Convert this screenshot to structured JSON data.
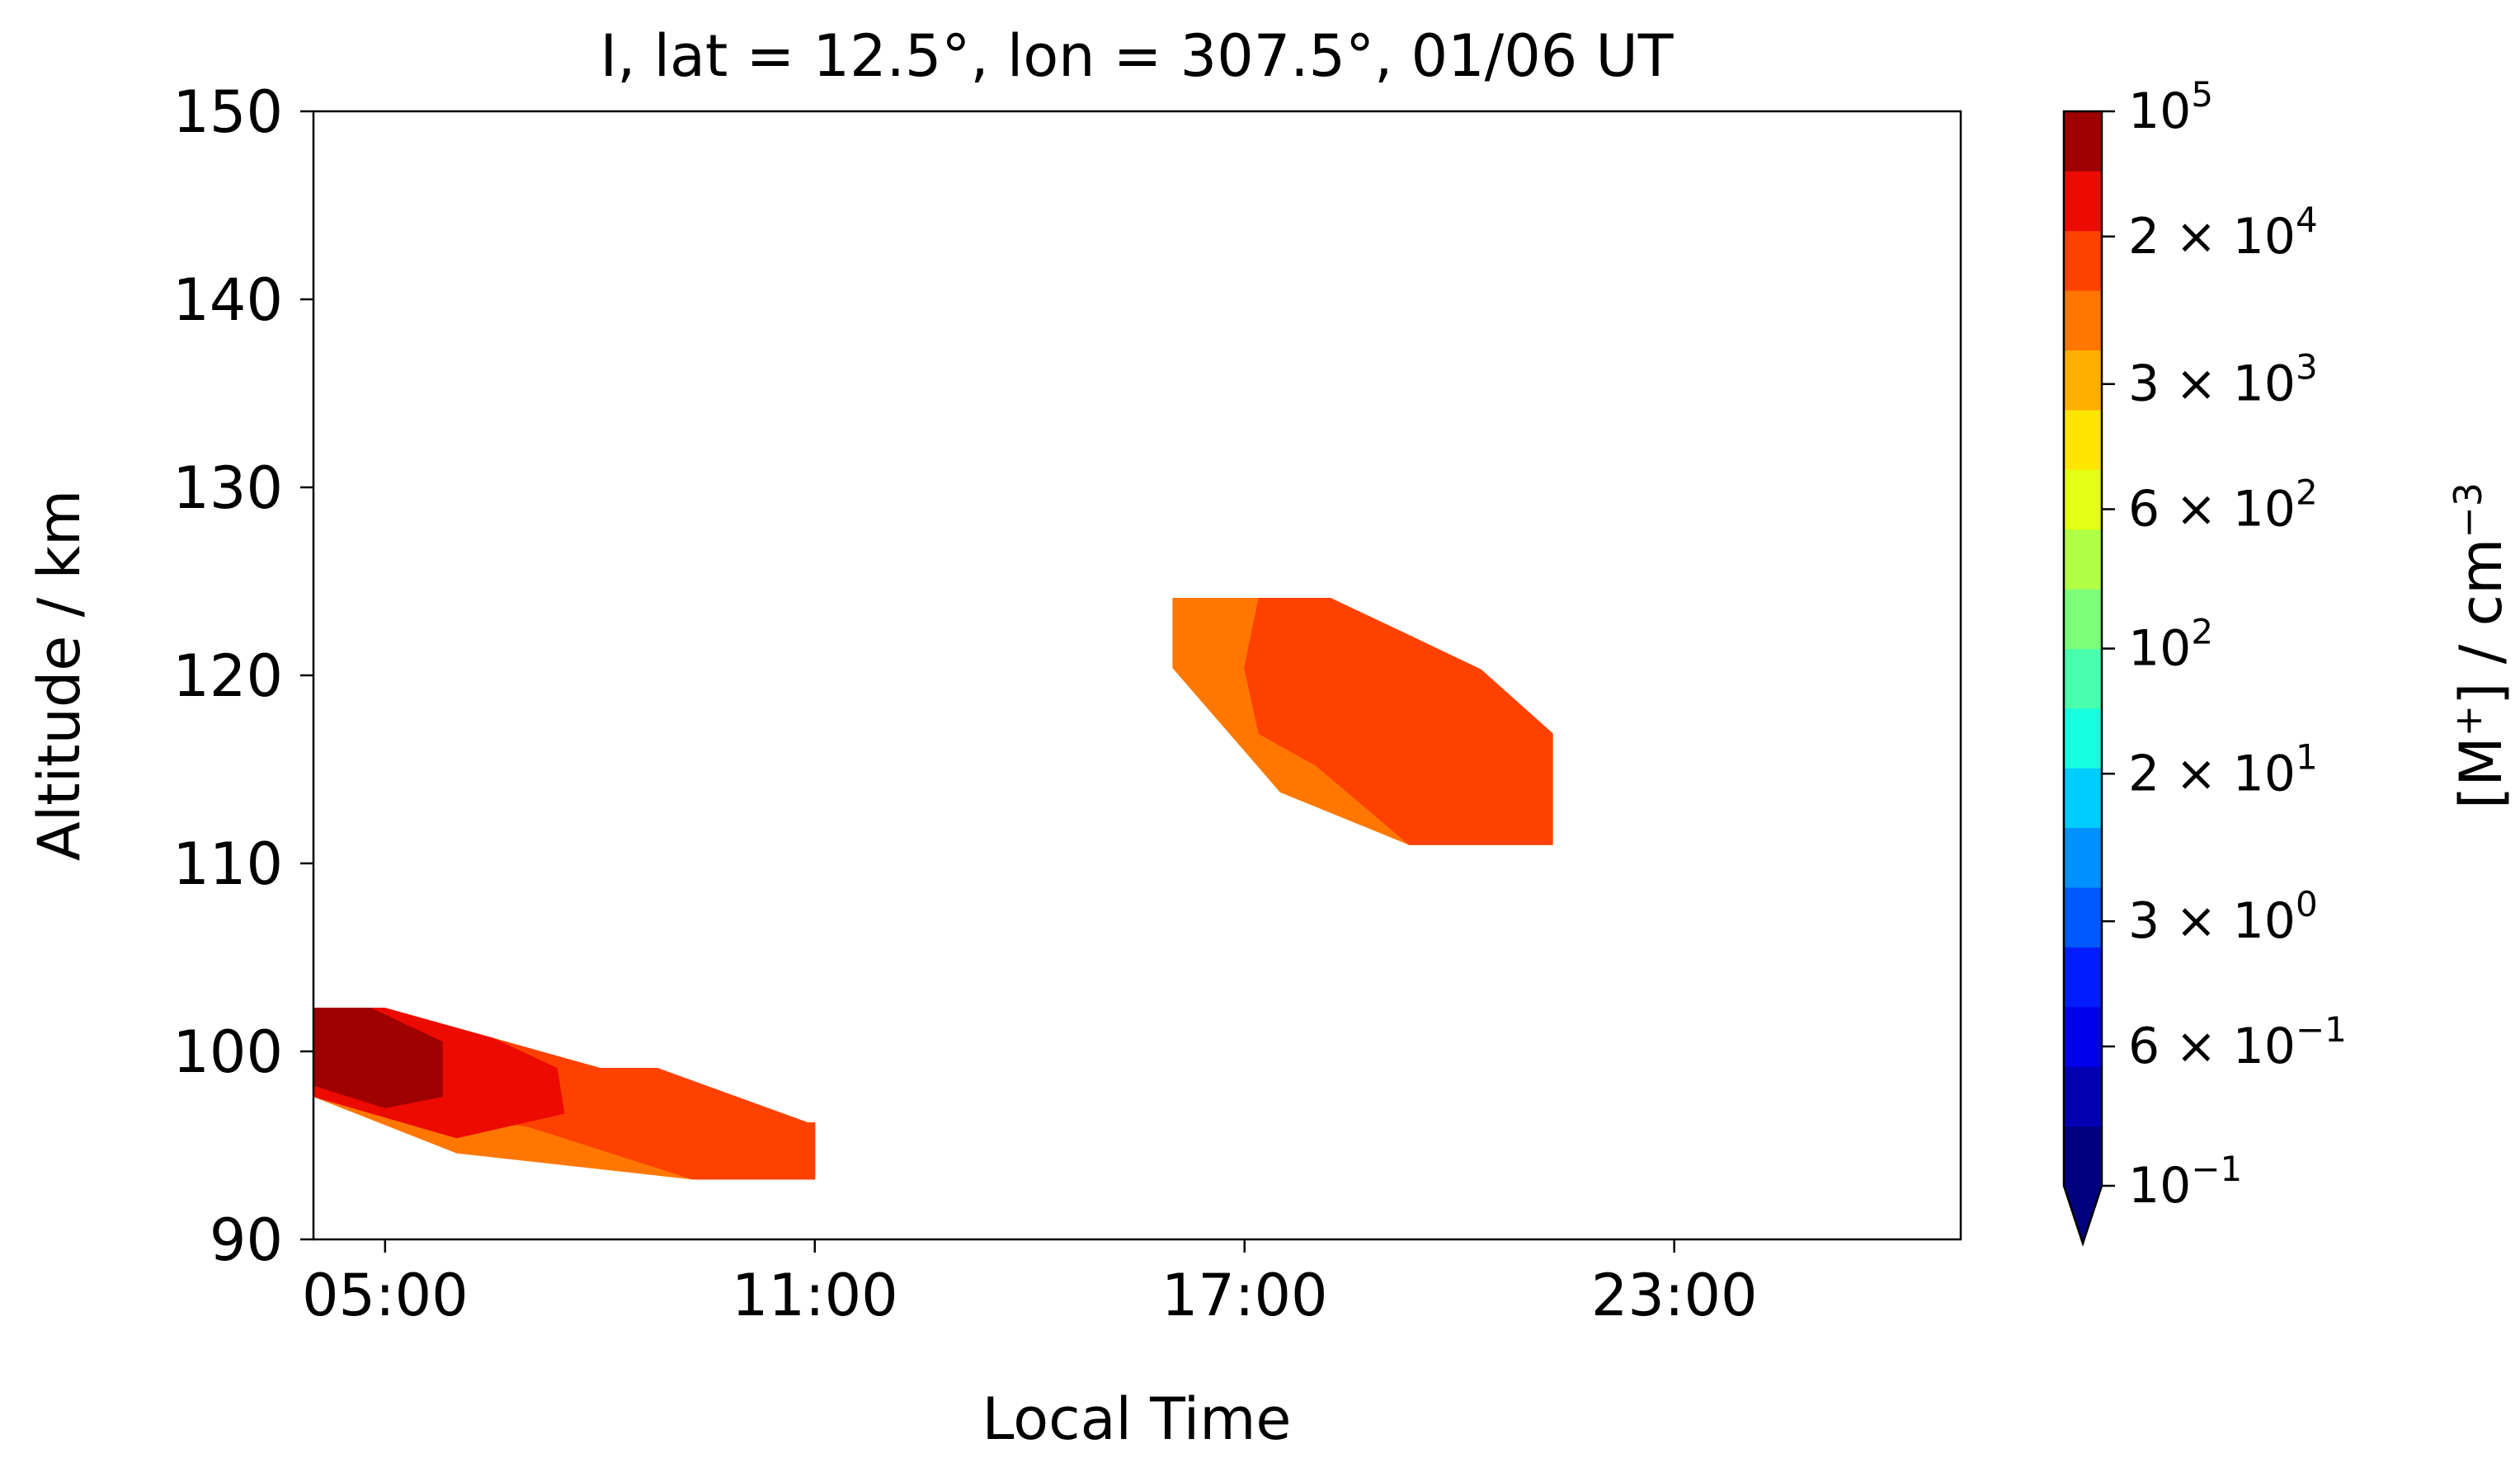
{
  "chart_data": {
    "type": "contour",
    "title": "I, lat = 12.5°, lon = 307.5°, 01/06 UT",
    "xlabel": "Local Time",
    "ylabel": "Altitude / km",
    "xlim": [
      4.0,
      27.0
    ],
    "ylim": [
      90,
      150
    ],
    "x_ticks": [
      {
        "value": 5,
        "label": "05:00"
      },
      {
        "value": 11,
        "label": "11:00"
      },
      {
        "value": 17,
        "label": "17:00"
      },
      {
        "value": 23,
        "label": "23:00"
      }
    ],
    "y_ticks": [
      {
        "value": 90,
        "label": "90"
      },
      {
        "value": 100,
        "label": "100"
      },
      {
        "value": 110,
        "label": "110"
      },
      {
        "value": 120,
        "label": "120"
      },
      {
        "value": 130,
        "label": "130"
      },
      {
        "value": 140,
        "label": "140"
      },
      {
        "value": 150,
        "label": "150"
      }
    ],
    "colorbar": {
      "label_main": "[M",
      "label_sup1": "+",
      "label_mid": "] / cm",
      "label_sup2": "−3",
      "scale": "log",
      "range": [
        0.1,
        100000
      ],
      "extend": "min",
      "colors": [
        "#00007f",
        "#0000b2",
        "#0000ed",
        "#001cff",
        "#0058ff",
        "#0090ff",
        "#00ccff",
        "#16ffe1",
        "#49ffad",
        "#7dff7a",
        "#b1ff46",
        "#e4ff13",
        "#ffe500",
        "#ffae00",
        "#ff7700",
        "#ff4100",
        "#ed0a00",
        "#9f0000"
      ],
      "ticks": [
        {
          "value": 0.1,
          "mant": "10",
          "exp": "−1"
        },
        {
          "value": 0.6,
          "mant": "6 × 10",
          "exp": "−1"
        },
        {
          "value": 3,
          "mant": "3 × 10",
          "exp": "0"
        },
        {
          "value": 20,
          "mant": "2 × 10",
          "exp": "1"
        },
        {
          "value": 100,
          "mant": "10",
          "exp": "2"
        },
        {
          "value": 600,
          "mant": "6 × 10",
          "exp": "2"
        },
        {
          "value": 3000,
          "mant": "3 × 10",
          "exp": "3"
        },
        {
          "value": 20000,
          "mant": "2 × 10",
          "exp": "4"
        },
        {
          "value": 100000,
          "mant": "10",
          "exp": "5"
        }
      ]
    },
    "regions": [
      {
        "color": "#ff7700",
        "points": [
          [
            4.0,
            102.3
          ],
          [
            5.0,
            102.3
          ],
          [
            8.0,
            99.1
          ],
          [
            8.8,
            99.1
          ],
          [
            10.9,
            96.2
          ],
          [
            11.0,
            96.2
          ],
          [
            11.0,
            93.2
          ],
          [
            9.3,
            93.2
          ],
          [
            6.0,
            94.6
          ],
          [
            4.0,
            97.6
          ]
        ]
      },
      {
        "color": "#ff4100",
        "points": [
          [
            4.0,
            102.3
          ],
          [
            5.0,
            102.3
          ],
          [
            8.0,
            99.1
          ],
          [
            8.8,
            99.1
          ],
          [
            10.9,
            96.2
          ],
          [
            11.0,
            96.2
          ],
          [
            11.0,
            93.2
          ],
          [
            9.3,
            93.2
          ],
          [
            7.0,
            96.0
          ],
          [
            4.0,
            97.6
          ]
        ]
      },
      {
        "color": "#ed0a00",
        "points": [
          [
            4.0,
            102.3
          ],
          [
            5.0,
            102.3
          ],
          [
            6.5,
            100.7
          ],
          [
            7.4,
            99.1
          ],
          [
            7.5,
            96.7
          ],
          [
            6.0,
            95.4
          ],
          [
            4.0,
            97.6
          ]
        ]
      },
      {
        "color": "#9f0000",
        "points": [
          [
            4.0,
            102.3
          ],
          [
            4.8,
            102.3
          ],
          [
            5.8,
            100.5
          ],
          [
            5.8,
            97.6
          ],
          [
            5.0,
            97.0
          ],
          [
            4.0,
            98.2
          ]
        ]
      },
      {
        "color": "#ff7700",
        "points": [
          [
            16.0,
            124.1
          ],
          [
            18.2,
            124.1
          ],
          [
            19.2,
            122.3
          ],
          [
            20.3,
            120.3
          ],
          [
            21.3,
            116.9
          ],
          [
            21.3,
            111.0
          ],
          [
            19.3,
            111.0
          ],
          [
            17.5,
            113.8
          ],
          [
            16.0,
            120.4
          ]
        ]
      },
      {
        "color": "#ff4100",
        "points": [
          [
            17.2,
            124.1
          ],
          [
            18.2,
            124.1
          ],
          [
            19.2,
            122.3
          ],
          [
            20.3,
            120.3
          ],
          [
            21.3,
            116.9
          ],
          [
            21.3,
            111.0
          ],
          [
            19.3,
            111.0
          ],
          [
            18.0,
            115.2
          ],
          [
            17.2,
            116.9
          ],
          [
            17.0,
            120.4
          ]
        ]
      }
    ]
  }
}
